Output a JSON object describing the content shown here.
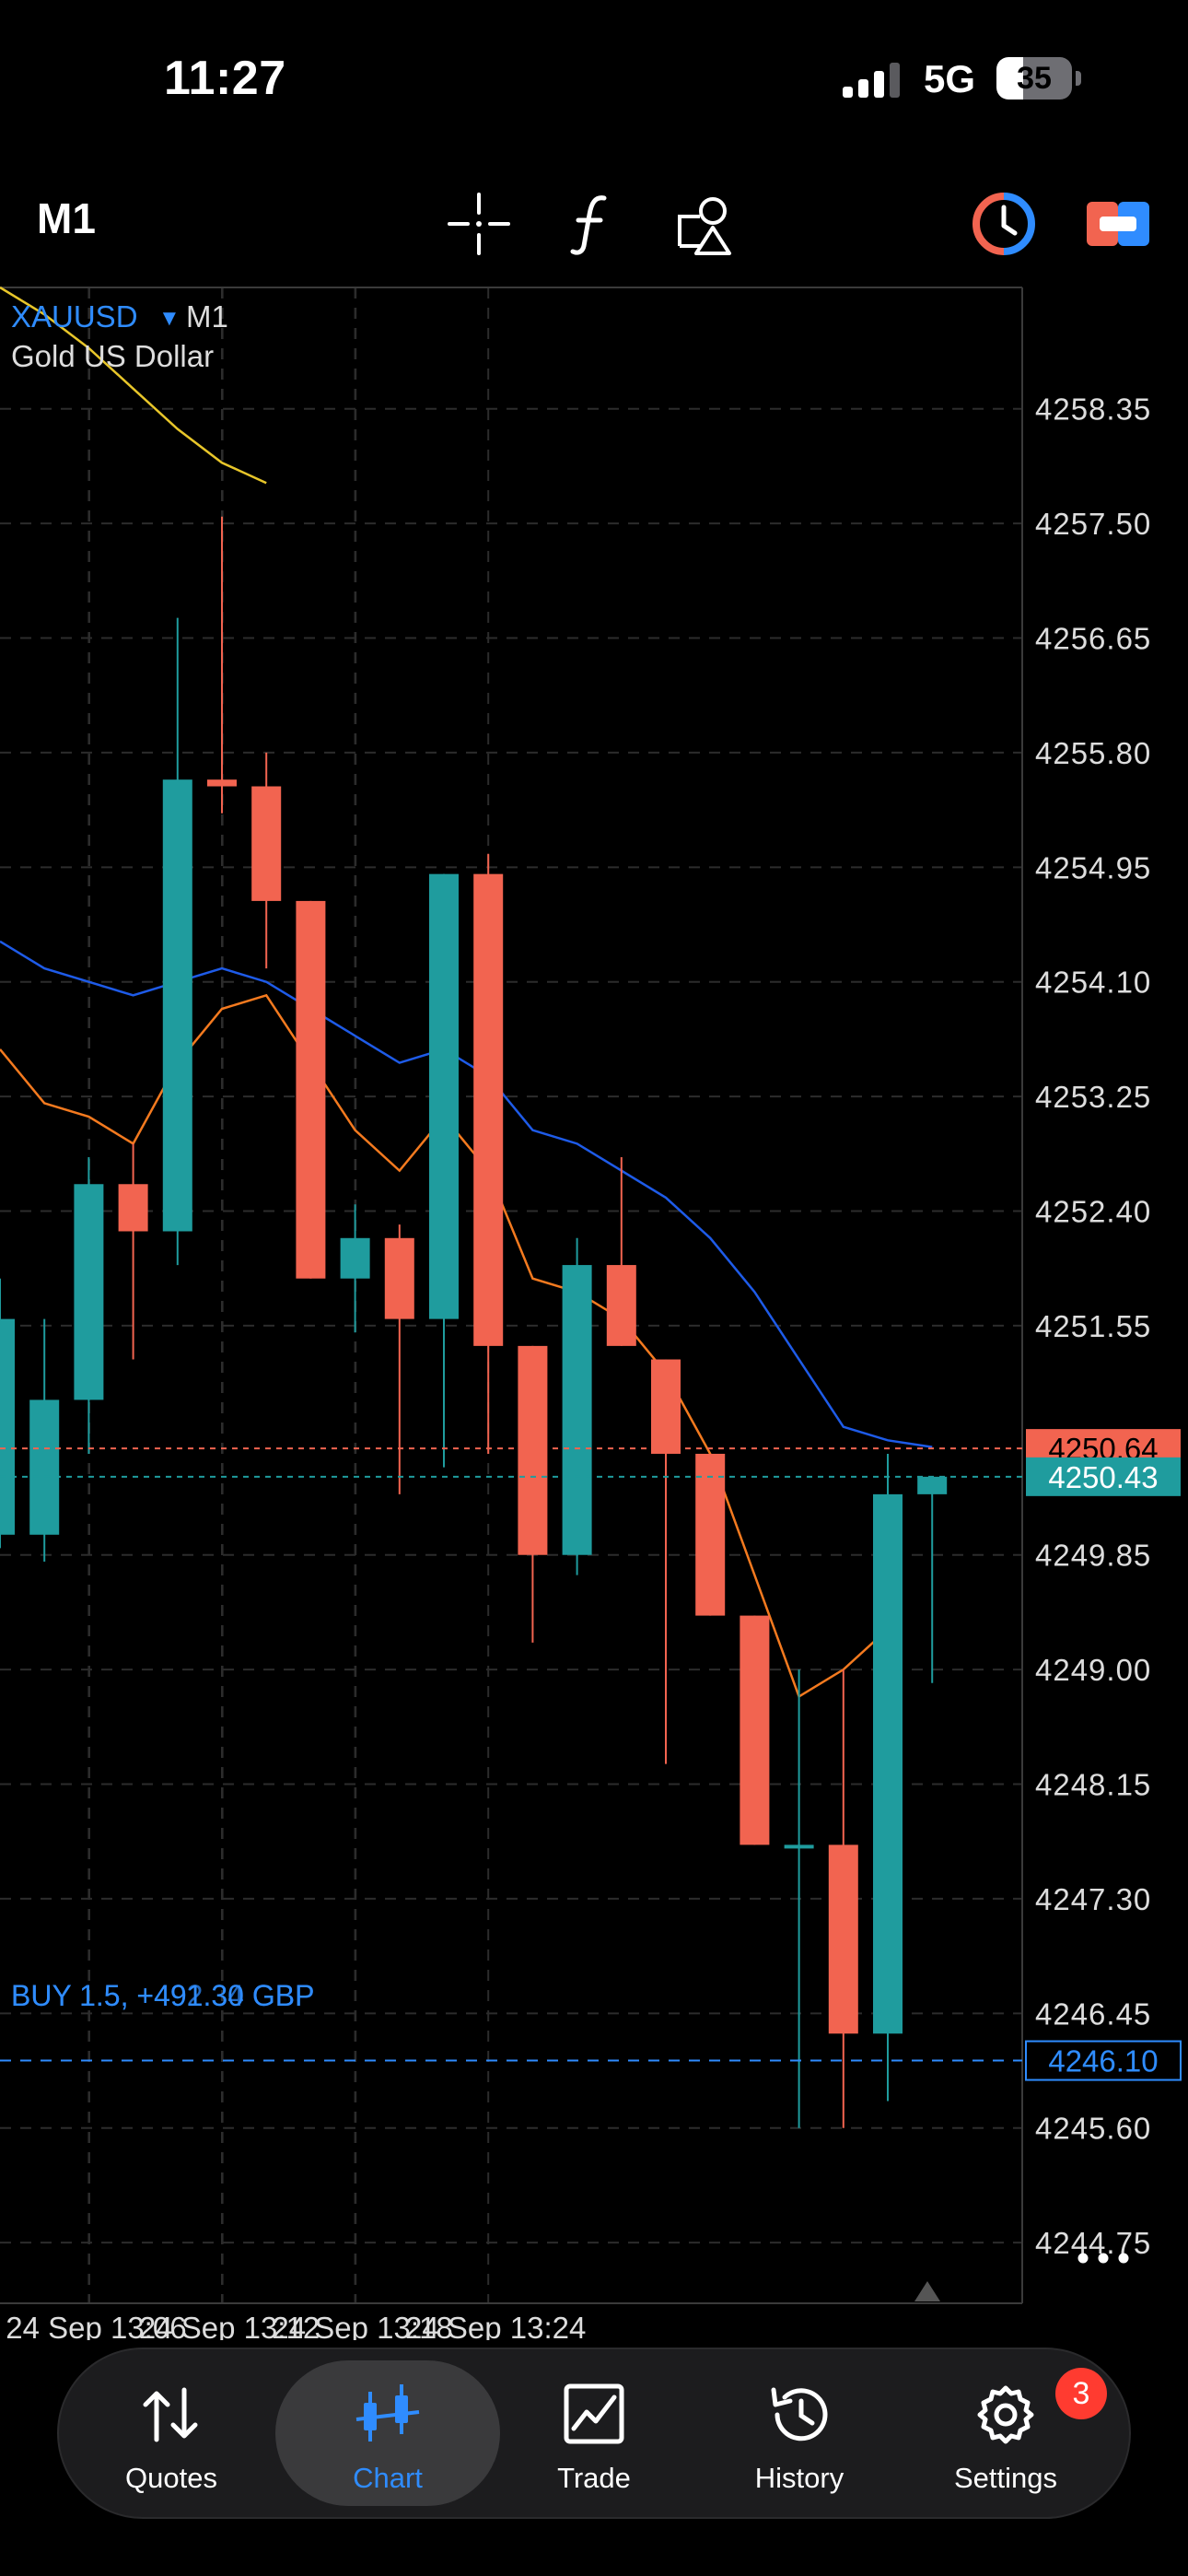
{
  "status_bar": {
    "time": "11:27",
    "network": "5G",
    "battery_level": "35",
    "battery_fraction": 0.35
  },
  "toolbar": {
    "timeframe": "M1"
  },
  "chart_header": {
    "symbol": "XAUUSD",
    "timeframe": "M1",
    "description": "Gold US Dollar"
  },
  "price_axis": [
    "4258.35",
    "4257.50",
    "4256.65",
    "4255.80",
    "4254.95",
    "4254.10",
    "4253.25",
    "4252.40",
    "4251.55",
    "4250.64",
    "4250.43",
    "4249.85",
    "4249.00",
    "4248.15",
    "4247.30",
    "4246.45",
    "4246.10",
    "4245.60",
    "4244.75"
  ],
  "time_axis": [
    "24 Sep 13:06",
    "24 Sep 13:12",
    "24 Sep 13:18",
    "24 Sep 13:24"
  ],
  "price_labels": {
    "ask": "4250.64",
    "bid": "4250.43",
    "position": "4246.10"
  },
  "position_line": {
    "label": "BUY 1.5, +491.30 GBP",
    "overlap_label": "BUY 1.5, +492.34 GBP"
  },
  "colors": {
    "bull": "#1f9c9e",
    "bear": "#f26450",
    "ma_fast": "#f47a1f",
    "ma_slow": "#1e5be8",
    "ma_long": "#e8c62a",
    "accent": "#2f8cff"
  },
  "chart_data": {
    "type": "candlestick",
    "ylim": [
      4244.3,
      4259.25
    ],
    "series": [
      {
        "name": "",
        "candles": [
          {
            "o": 4250.0,
            "h": 4251.9,
            "l": 4249.9,
            "c": 4251.6
          },
          {
            "o": 4250.0,
            "h": 4251.6,
            "l": 4249.8,
            "c": 4251.0
          },
          {
            "o": 4251.0,
            "h": 4252.8,
            "l": 4250.6,
            "c": 4252.6
          },
          {
            "o": 4252.6,
            "h": 4252.9,
            "l": 4251.3,
            "c": 4252.25
          },
          {
            "o": 4252.25,
            "h": 4256.8,
            "l": 4252.0,
            "c": 4255.6
          },
          {
            "o": 4255.6,
            "h": 4257.55,
            "l": 4255.35,
            "c": 4255.55
          },
          {
            "o": 4255.55,
            "h": 4255.8,
            "l": 4254.2,
            "c": 4254.7
          },
          {
            "o": 4254.7,
            "h": 4254.7,
            "l": 4251.9,
            "c": 4251.9
          },
          {
            "o": 4251.9,
            "h": 4252.45,
            "l": 4251.5,
            "c": 4252.2
          },
          {
            "o": 4252.2,
            "h": 4252.3,
            "l": 4250.3,
            "c": 4251.6
          },
          {
            "o": 4251.6,
            "h": 4254.9,
            "l": 4250.5,
            "c": 4254.9
          },
          {
            "o": 4254.9,
            "h": 4255.05,
            "l": 4250.6,
            "c": 4251.4
          },
          {
            "o": 4251.4,
            "h": 4251.4,
            "l": 4249.2,
            "c": 4249.85
          },
          {
            "o": 4249.85,
            "h": 4252.2,
            "l": 4249.7,
            "c": 4252.0
          },
          {
            "o": 4252.0,
            "h": 4252.8,
            "l": 4251.4,
            "c": 4251.4
          },
          {
            "o": 4251.3,
            "h": 4251.3,
            "l": 4248.3,
            "c": 4250.6
          },
          {
            "o": 4250.6,
            "h": 4250.6,
            "l": 4249.4,
            "c": 4249.4
          },
          {
            "o": 4249.4,
            "h": 4249.4,
            "l": 4247.7,
            "c": 4247.7
          },
          {
            "o": 4247.7,
            "h": 4249.0,
            "l": 4245.6,
            "c": 4247.7
          },
          {
            "o": 4247.7,
            "h": 4249.0,
            "l": 4245.6,
            "c": 4246.3
          },
          {
            "o": 4246.3,
            "h": 4250.6,
            "l": 4245.8,
            "c": 4250.3
          },
          {
            "o": 4250.3,
            "h": 4250.43,
            "l": 4248.9,
            "c": 4250.43
          }
        ]
      },
      {
        "name": "",
        "type": "line",
        "color_key": "ma_fast",
        "values": [
          4253.6,
          4253.2,
          4253.1,
          4252.9,
          4253.5,
          4253.9,
          4254.0,
          4253.5,
          4253.0,
          4252.7,
          4253.1,
          4252.7,
          4251.9,
          4251.8,
          4251.6,
          4251.2,
          4250.6,
          4249.7,
          4248.8,
          4249.0,
          4249.3
        ]
      },
      {
        "name": "",
        "type": "line",
        "color_key": "ma_slow",
        "values": [
          4254.4,
          4254.2,
          4254.1,
          4254.0,
          4254.1,
          4254.2,
          4254.1,
          4253.9,
          4253.7,
          4253.5,
          4253.6,
          4253.4,
          4253.0,
          4252.9,
          4252.7,
          4252.5,
          4252.2,
          4251.8,
          4251.3,
          4250.8,
          4250.7,
          4250.65
        ]
      },
      {
        "name": "",
        "type": "line",
        "color_key": "ma_long",
        "values": [
          4259.25,
          4259.05,
          4258.8,
          4258.5,
          4258.2,
          4257.95,
          4257.8
        ]
      }
    ]
  },
  "nav": [
    {
      "label": "Quotes",
      "icon": "quotes-icon"
    },
    {
      "label": "Chart",
      "icon": "chart-icon",
      "active": true
    },
    {
      "label": "Trade",
      "icon": "trade-icon"
    },
    {
      "label": "History",
      "icon": "history-icon"
    },
    {
      "label": "Settings",
      "icon": "settings-icon",
      "badge": "3"
    }
  ]
}
